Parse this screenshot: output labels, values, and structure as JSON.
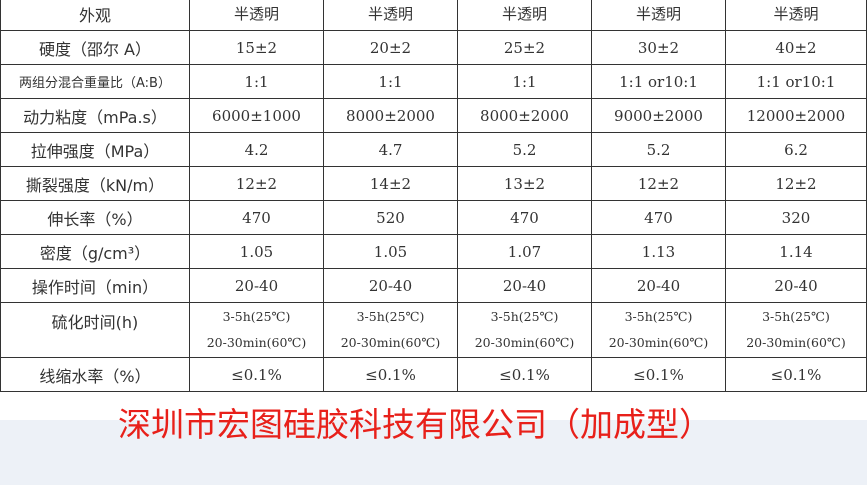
{
  "rows": [
    {
      "label": "外观",
      "values": [
        "半透明",
        "半透明",
        "半透明",
        "半透明",
        "半透明"
      ]
    },
    {
      "label": "硬度（邵尔 A）",
      "values": [
        "15±2",
        "20±2",
        "25±2",
        "30±2",
        "40±2"
      ]
    },
    {
      "label": "两组分混合重量比（A:B）",
      "values": [
        "1:1",
        "1:1",
        "1:1",
        "1:1 or10:1",
        "1:1 or10:1"
      ]
    },
    {
      "label": "动力粘度（mPa.s）",
      "values": [
        "6000±1000",
        "8000±2000",
        "8000±2000",
        "9000±2000",
        "12000±2000"
      ]
    },
    {
      "label": "拉伸强度（MPa）",
      "values": [
        "4.2",
        "4.7",
        "5.2",
        "5.2",
        "6.2"
      ]
    },
    {
      "label": "撕裂强度（kN/m）",
      "values": [
        "12±2",
        "14±2",
        "13±2",
        "12±2",
        "12±2"
      ]
    },
    {
      "label": "伸长率（%）",
      "values": [
        "470",
        "520",
        "470",
        "470",
        "320"
      ]
    },
    {
      "label": "密度（g/cm³）",
      "values": [
        "1.05",
        "1.05",
        "1.07",
        "1.13",
        "1.14"
      ]
    },
    {
      "label": "操作时间（min）",
      "values": [
        "20-40",
        "20-40",
        "20-40",
        "20-40",
        "20-40"
      ]
    },
    {
      "label": "硫化时间(h)",
      "values": [
        "3-5h(25℃)",
        "3-5h(25℃)",
        "3-5h(25℃)",
        "3-5h(25℃)",
        "3-5h(25℃)"
      ],
      "values2": [
        "20-30min(60℃)",
        "20-30min(60℃)",
        "20-30min(60℃)",
        "20-30min(60℃)",
        "20-30min(60℃)"
      ]
    },
    {
      "label": "线缩水率（%）",
      "values": [
        "≤0.1%",
        "≤0.1%",
        "≤0.1%",
        "≤0.1%",
        "≤0.1%"
      ]
    }
  ],
  "title": "深圳市宏图硅胶科技有限公司（加成型）",
  "colors": {
    "title": "#e8201a",
    "background": "#edf1f7"
  }
}
